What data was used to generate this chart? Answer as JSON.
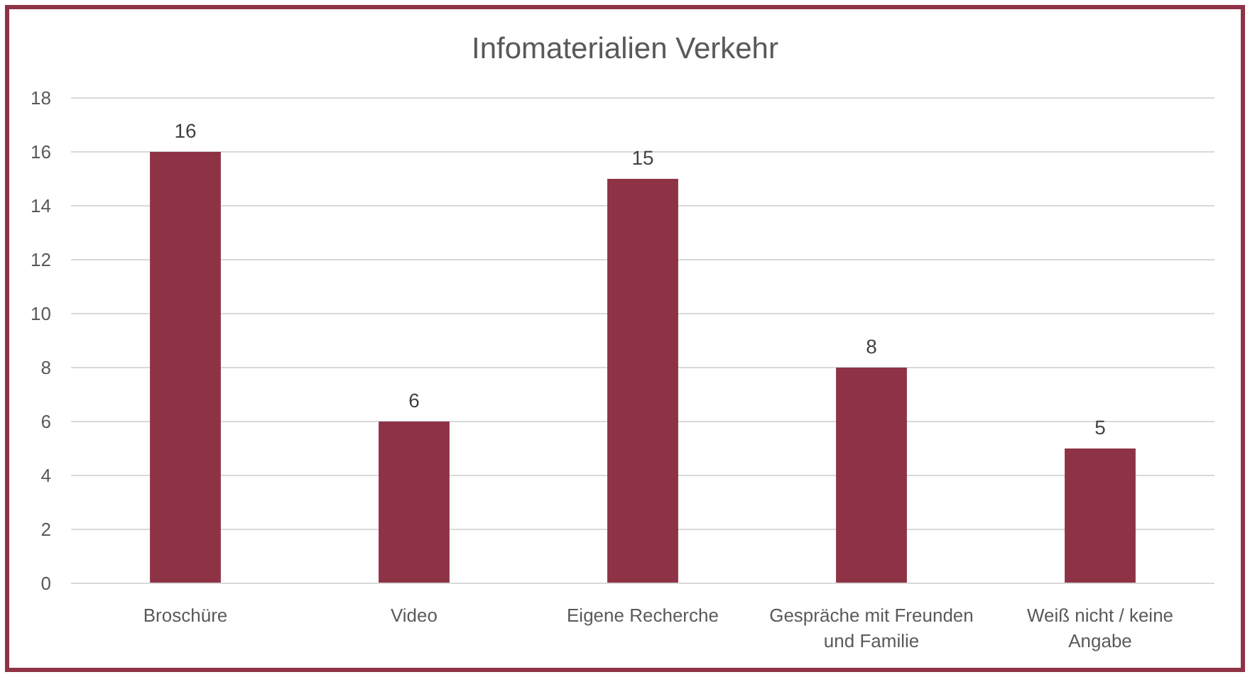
{
  "chart_data": {
    "type": "bar",
    "title": "Infomaterialien Verkehr",
    "categories": [
      "Broschüre",
      "Video",
      "Eigene Recherche",
      "Gespräche mit Freunden und Familie",
      "Weiß nicht / keine Angabe"
    ],
    "values": [
      16,
      6,
      15,
      8,
      5
    ],
    "color": "#8e3346",
    "ylim": [
      0,
      18
    ],
    "yticks": [
      0,
      2,
      4,
      6,
      8,
      10,
      12,
      14,
      16,
      18
    ],
    "grid": "y",
    "data_labels": true
  }
}
